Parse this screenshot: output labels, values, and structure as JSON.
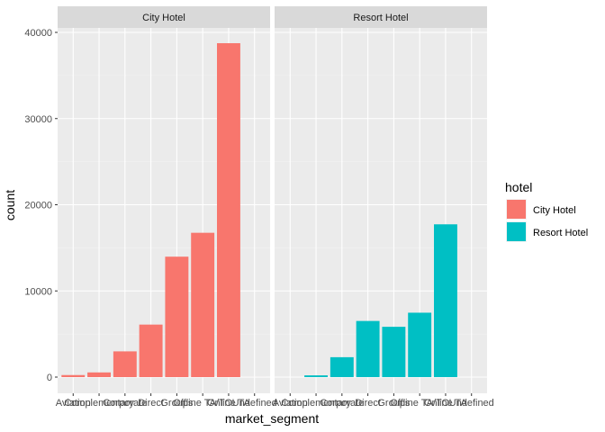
{
  "chart_data": {
    "type": "bar",
    "xlabel": "market_segment",
    "ylabel": "count",
    "categories": [
      "Aviation",
      "Complementary",
      "Corporate",
      "Direct",
      "Groups",
      "Offline TA/TO",
      "Online TA",
      "Undefined"
    ],
    "panels": [
      {
        "name": "City Hotel",
        "values": [
          237,
          542,
          2986,
          6093,
          13975,
          16747,
          38748,
          2
        ]
      },
      {
        "name": "Resort Hotel",
        "values": [
          0,
          201,
          2309,
          6513,
          5836,
          7472,
          17729,
          0
        ]
      }
    ],
    "ylim": [
      0,
      41000
    ],
    "yticks": [
      0,
      10000,
      20000,
      30000,
      40000
    ],
    "grid": true,
    "legend": {
      "title": "hotel",
      "position": "right",
      "entries": [
        {
          "label": "City Hotel",
          "color": "#F8766D"
        },
        {
          "label": "Resort Hotel",
          "color": "#00BFC4"
        }
      ]
    }
  }
}
